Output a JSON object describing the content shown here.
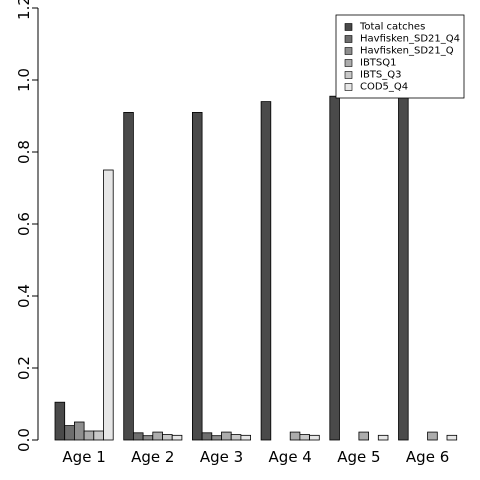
{
  "chart_data": {
    "type": "bar",
    "categories": [
      "Age 1",
      "Age 2",
      "Age 3",
      "Age 4",
      "Age 5",
      "Age 6"
    ],
    "ylim": [
      0,
      1.2
    ],
    "y_ticks": [
      "0.0",
      "0.2",
      "0.4",
      "0.6",
      "0.8",
      "1.0",
      "1.2"
    ],
    "grid": false,
    "legend_position": "top-right",
    "series": [
      {
        "name": "Total catches",
        "color": "#4a4a4a",
        "values": [
          0.105,
          0.91,
          0.91,
          0.94,
          0.955,
          0.97
        ]
      },
      {
        "name": "Havfisken_SD21_Q4",
        "color": "#6e6e6e",
        "values": [
          0.04,
          0.02,
          0.02,
          0,
          0,
          0
        ]
      },
      {
        "name": "Havfisken_SD21_Q",
        "color": "#8e8e8e",
        "values": [
          0.05,
          0.012,
          0.012,
          0,
          0,
          0
        ]
      },
      {
        "name": "IBTSQ1",
        "color": "#acacac",
        "values": [
          0.025,
          0.022,
          0.022,
          0.022,
          0.022,
          0.022
        ]
      },
      {
        "name": "IBTS_Q3",
        "color": "#c8c8c8",
        "values": [
          0.025,
          0.015,
          0.015,
          0.015,
          0,
          0
        ]
      },
      {
        "name": "COD5_Q4",
        "color": "#e6e6e6",
        "values": [
          0.75,
          0.013,
          0.013,
          0.013,
          0.013,
          0.013
        ]
      }
    ]
  }
}
